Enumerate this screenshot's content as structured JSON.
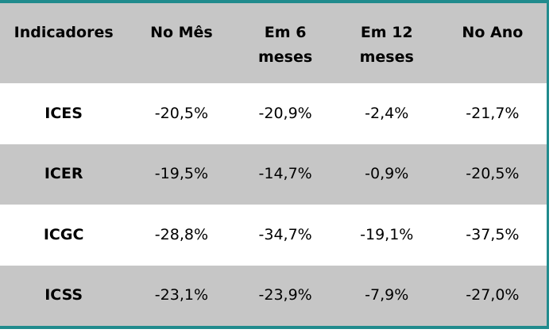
{
  "accent_color": "#208b8d",
  "header_bg_color": "#c6c6c6",
  "alt_row_color": "#c6c6c6",
  "table": {
    "columns": [
      "Indicadores",
      "No Mês",
      "Em 6 meses",
      "Em 12 meses",
      "No Ano"
    ],
    "rows": [
      {
        "label": "ICES",
        "values": [
          "-20,5%",
          "-20,9%",
          "-2,4%",
          "-21,7%"
        ]
      },
      {
        "label": "ICER",
        "values": [
          "-19,5%",
          "-14,7%",
          "-0,9%",
          "-20,5%"
        ]
      },
      {
        "label": "ICGC",
        "values": [
          "-28,8%",
          "-34,7%",
          "-19,1%",
          "-37,5%"
        ]
      },
      {
        "label": "ICSS",
        "values": [
          "-23,1%",
          "-23,9%",
          "-7,9%",
          "-27,0%"
        ]
      }
    ]
  },
  "chart_data": {
    "type": "table",
    "title": "",
    "columns": [
      "Indicadores",
      "No Mês",
      "Em 6 meses",
      "Em 12 meses",
      "No Ano"
    ],
    "row_labels": [
      "ICES",
      "ICER",
      "ICGC",
      "ICSS"
    ],
    "values_percent": [
      [
        -20.5,
        -20.9,
        -2.4,
        -21.7
      ],
      [
        -19.5,
        -14.7,
        -0.9,
        -20.5
      ],
      [
        -28.8,
        -34.7,
        -19.1,
        -37.5
      ],
      [
        -23.1,
        -23.9,
        -7.9,
        -27.0
      ]
    ],
    "decimal_separator": ",",
    "unit": "%"
  }
}
